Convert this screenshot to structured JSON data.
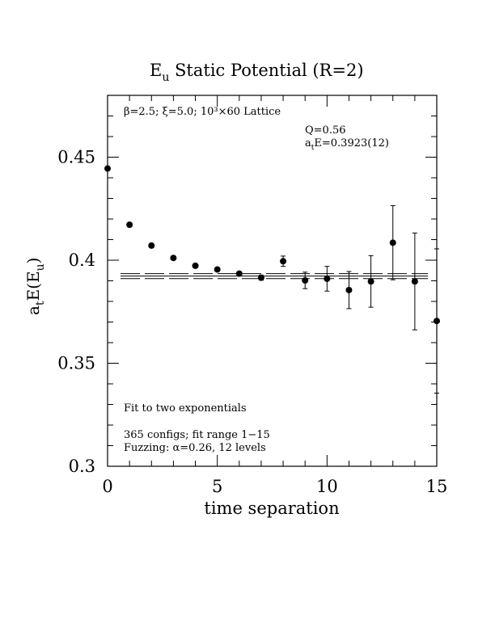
{
  "chart_data": {
    "type": "scatter",
    "title": "E",
    "title_sub": "u",
    "title_rest": " Static Potential (R=2)",
    "xlabel": "time separation",
    "ylabel_parts": [
      "a",
      "t",
      "E(E",
      "u",
      ")"
    ],
    "xlim": [
      0,
      15
    ],
    "ylim": [
      0.3,
      0.48
    ],
    "x_ticks": [
      0,
      5,
      10,
      15
    ],
    "x_tick_labels": [
      "0",
      "5",
      "10",
      "15"
    ],
    "y_ticks": [
      0.3,
      0.35,
      0.4,
      0.45
    ],
    "y_tick_labels": [
      "0.3",
      "0.35",
      "0.4",
      "0.45"
    ],
    "grid": false,
    "annotations": {
      "lattice": "β=2.5; ξ=5.0; 10³×60 Lattice",
      "q": "Q=0.56",
      "energy_prefix": "a",
      "energy_sub": "t",
      "energy_rest": "E=0.3923(12)",
      "fit_type": "Fit to two exponentials",
      "configs": "365 configs; fit range 1−15",
      "fuzzing": "Fuzzing: α=0.26, 12 levels"
    },
    "fit": {
      "value": 0.3923,
      "error": 0.0012,
      "x_range": [
        0,
        14.6
      ]
    },
    "series": [
      {
        "points": [
          {
            "x": 0,
            "y": 0.4445,
            "err": 0.0008
          },
          {
            "x": 1,
            "y": 0.4172,
            "err": 0.0008
          },
          {
            "x": 2,
            "y": 0.4071,
            "err": 0.0008
          },
          {
            "x": 3,
            "y": 0.4011,
            "err": 0.0008
          },
          {
            "x": 4,
            "y": 0.3973,
            "err": 0.0008
          },
          {
            "x": 5,
            "y": 0.3955,
            "err": 0.0008
          },
          {
            "x": 6,
            "y": 0.3935,
            "err": 0.0008
          },
          {
            "x": 7,
            "y": 0.3915,
            "err": 0.0012
          },
          {
            "x": 8,
            "y": 0.3995,
            "err": 0.0025
          },
          {
            "x": 9,
            "y": 0.3902,
            "err": 0.004
          },
          {
            "x": 10,
            "y": 0.391,
            "err": 0.006
          },
          {
            "x": 11,
            "y": 0.3855,
            "err": 0.009
          },
          {
            "x": 12,
            "y": 0.3897,
            "err": 0.0125
          },
          {
            "x": 13,
            "y": 0.4085,
            "err": 0.018
          },
          {
            "x": 14,
            "y": 0.3897,
            "err": 0.0235
          },
          {
            "x": 15,
            "y": 0.3705,
            "err": 0.035
          }
        ]
      }
    ]
  }
}
